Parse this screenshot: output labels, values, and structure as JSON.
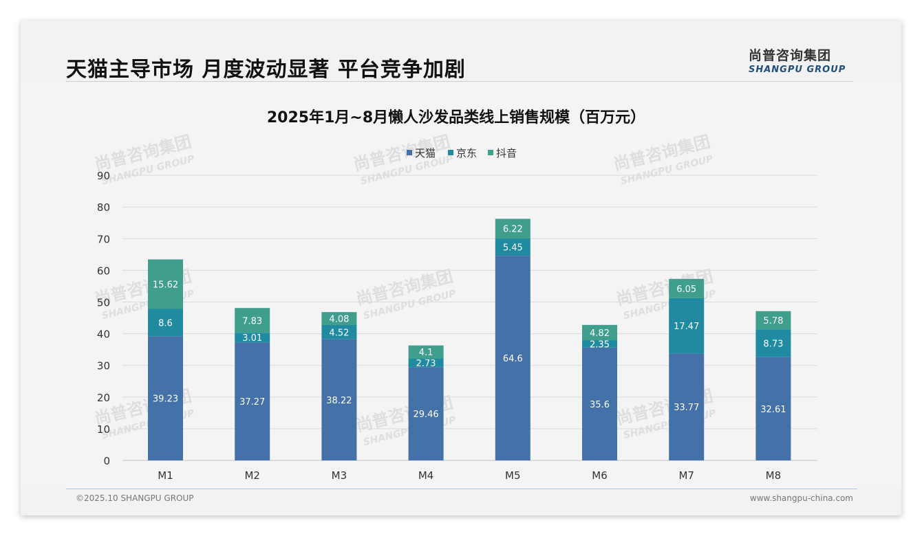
{
  "headline": "天猫主导市场 月度波动显著 平台竞争加剧",
  "logo": {
    "cn": "尚普咨询集团",
    "en": "SHANGPU GROUP"
  },
  "watermark": {
    "cn": "尚普咨询集团",
    "en": "SHANGPU GROUP"
  },
  "footer": {
    "left": "©2025.10 SHANGPU GROUP",
    "right": "www.shangpu-china.com"
  },
  "colors": {
    "tmall": "#4472a8",
    "jd": "#1f8aa0",
    "douyin": "#3f9e8c"
  },
  "chart_data": {
    "type": "bar",
    "stacked": true,
    "title": "2025年1月~8月懒人沙发品类线上销售规模（百万元）",
    "categories": [
      "M1",
      "M2",
      "M3",
      "M4",
      "M5",
      "M6",
      "M7",
      "M8"
    ],
    "series": [
      {
        "name": "天猫",
        "values": [
          39.23,
          37.27,
          38.22,
          29.46,
          64.6,
          35.6,
          33.77,
          32.61
        ]
      },
      {
        "name": "京东",
        "values": [
          8.6,
          3.01,
          4.52,
          2.73,
          5.45,
          2.35,
          17.47,
          8.73
        ]
      },
      {
        "name": "抖音",
        "values": [
          15.62,
          7.83,
          4.08,
          4.1,
          6.22,
          4.82,
          6.05,
          5.78
        ]
      }
    ],
    "yticks": [
      0,
      10,
      20,
      30,
      40,
      50,
      60,
      70,
      80,
      90
    ],
    "ylim": [
      0,
      90
    ],
    "legend_position": "top"
  }
}
